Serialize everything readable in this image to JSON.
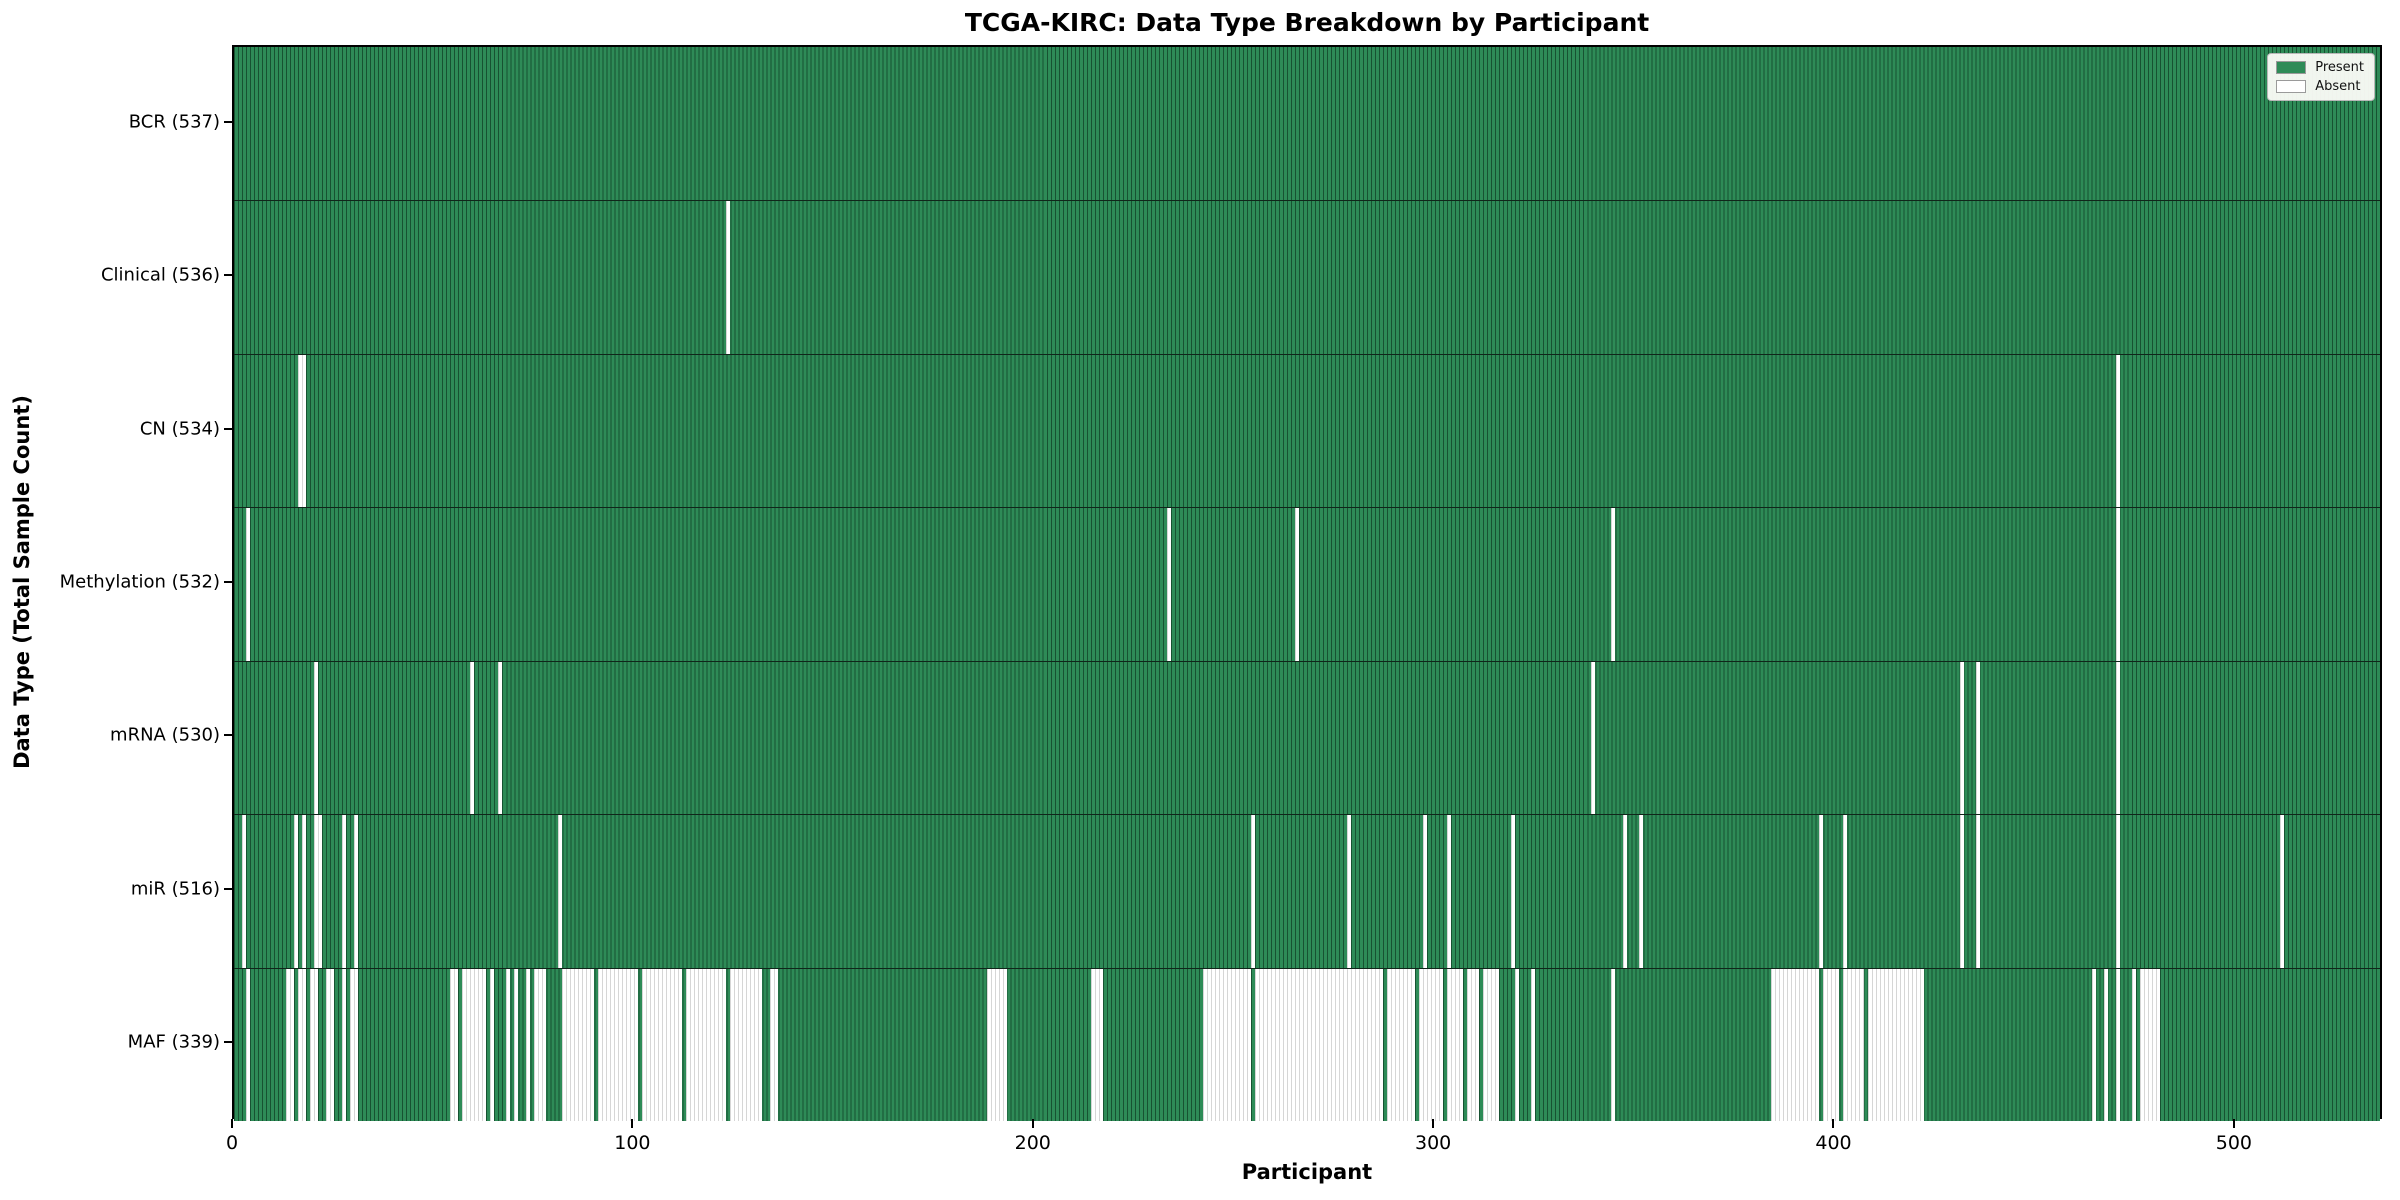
{
  "colors": {
    "present": "#2e8b57",
    "absent": "#ffffff",
    "bar_edge_on_green": "rgba(0,25,12,0.5)",
    "bar_edge_on_white": "rgba(0,0,0,0.16)",
    "axis": "#000000"
  },
  "chart_data": {
    "type": "heatmap",
    "title": "TCGA-KIRC: Data Type Breakdown by Participant",
    "xlabel": "Participant",
    "ylabel": "Data Type (Total Sample Count)",
    "x_ticks": [
      0,
      100,
      200,
      300,
      400,
      500
    ],
    "xlim": [
      0,
      537
    ],
    "n_participants": 537,
    "grid": false,
    "legend_position": "upper right",
    "legend": [
      {
        "label": "Present",
        "color": "#2e8b57"
      },
      {
        "label": "Absent",
        "color": "#ffffff"
      }
    ],
    "rows": [
      {
        "name": "BCR",
        "label": "BCR (537)",
        "present_count": 537,
        "absent_runs": []
      },
      {
        "name": "Clinical",
        "label": "Clinical (536)",
        "present_count": 536,
        "absent_runs": [
          [
            123,
            123
          ]
        ]
      },
      {
        "name": "CN",
        "label": "CN (534)",
        "present_count": 534,
        "absent_runs": [
          [
            16,
            17
          ],
          [
            470,
            470
          ]
        ]
      },
      {
        "name": "Methylation",
        "label": "Methylation (532)",
        "present_count": 532,
        "absent_runs": [
          [
            3,
            3
          ],
          [
            233,
            233
          ],
          [
            265,
            265
          ],
          [
            344,
            344
          ],
          [
            470,
            470
          ]
        ]
      },
      {
        "name": "mRNA",
        "label": "mRNA (530)",
        "present_count": 530,
        "absent_runs": [
          [
            20,
            20
          ],
          [
            59,
            59
          ],
          [
            66,
            66
          ],
          [
            339,
            339
          ],
          [
            431,
            431
          ],
          [
            435,
            435
          ],
          [
            470,
            470
          ]
        ]
      },
      {
        "name": "miR",
        "label": "miR (516)",
        "present_count": 516,
        "absent_runs": [
          [
            2,
            2
          ],
          [
            15,
            15
          ],
          [
            17,
            17
          ],
          [
            20,
            21
          ],
          [
            27,
            27
          ],
          [
            30,
            30
          ],
          [
            81,
            81
          ],
          [
            254,
            254
          ],
          [
            278,
            278
          ],
          [
            297,
            297
          ],
          [
            303,
            303
          ],
          [
            319,
            319
          ],
          [
            347,
            347
          ],
          [
            351,
            351
          ],
          [
            396,
            396
          ],
          [
            402,
            402
          ],
          [
            431,
            431
          ],
          [
            435,
            435
          ],
          [
            470,
            470
          ],
          [
            511,
            511
          ]
        ]
      },
      {
        "name": "MAF",
        "label": "MAF (339)",
        "present_count": 339,
        "absent_runs": [
          [
            3,
            3
          ],
          [
            13,
            14
          ],
          [
            16,
            17
          ],
          [
            19,
            20
          ],
          [
            23,
            24
          ],
          [
            27,
            27
          ],
          [
            29,
            30
          ],
          [
            54,
            55
          ],
          [
            57,
            62
          ],
          [
            64,
            64
          ],
          [
            68,
            68
          ],
          [
            70,
            70
          ],
          [
            73,
            73
          ],
          [
            75,
            77
          ],
          [
            82,
            89
          ],
          [
            91,
            100
          ],
          [
            102,
            111
          ],
          [
            113,
            122
          ],
          [
            124,
            131
          ],
          [
            134,
            135
          ],
          [
            188,
            192
          ],
          [
            214,
            216
          ],
          [
            242,
            253
          ],
          [
            255,
            286
          ],
          [
            288,
            294
          ],
          [
            296,
            301
          ],
          [
            303,
            306
          ],
          [
            308,
            310
          ],
          [
            312,
            315
          ],
          [
            320,
            320
          ],
          [
            324,
            324
          ],
          [
            344,
            344
          ],
          [
            384,
            395
          ],
          [
            397,
            400
          ],
          [
            402,
            406
          ],
          [
            408,
            421
          ],
          [
            464,
            464
          ],
          [
            467,
            467
          ],
          [
            470,
            470
          ],
          [
            474,
            474
          ],
          [
            476,
            480
          ]
        ]
      }
    ]
  }
}
